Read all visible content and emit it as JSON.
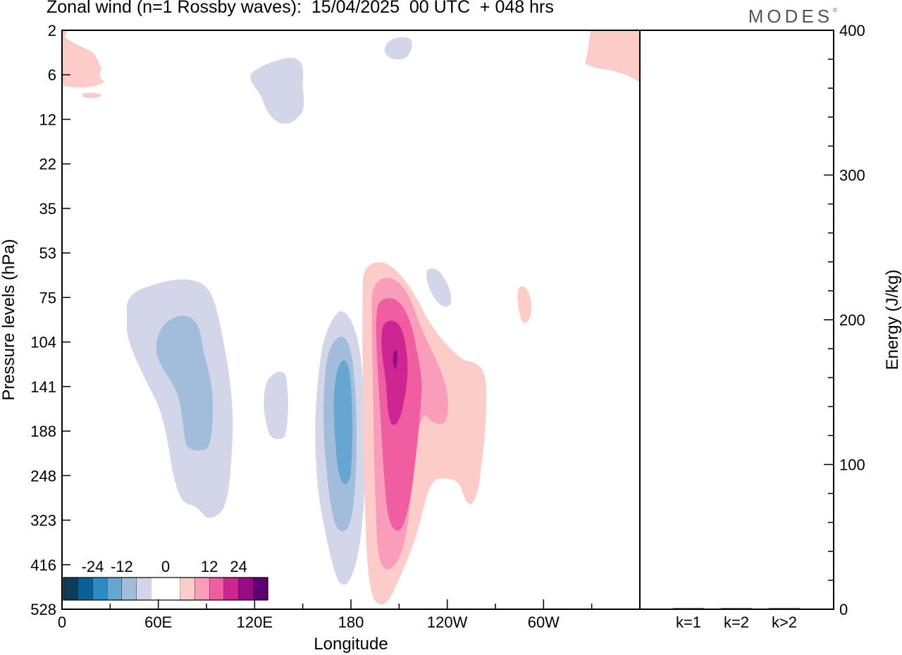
{
  "title": "Zonal wind (n=1 Rossby waves):  15/04/2025  00 UTC  + 048 hrs",
  "brand": "MODES",
  "brand_mark": "©",
  "chart_data": [
    {
      "type": "contour",
      "xlabel": "Longitude",
      "ylabel": "Pressure levels (hPa)",
      "x_ticks": [
        {
          "lon": 0,
          "label": "0"
        },
        {
          "lon": 60,
          "label": "60E"
        },
        {
          "lon": 120,
          "label": "120E"
        },
        {
          "lon": 180,
          "label": "180"
        },
        {
          "lon": 240,
          "label": "120W"
        },
        {
          "lon": 300,
          "label": "60W"
        }
      ],
      "xlim": [
        0,
        360
      ],
      "y_ticks": [
        "2",
        "6",
        "12",
        "22",
        "35",
        "53",
        "75",
        "104",
        "141",
        "188",
        "248",
        "323",
        "416",
        "528"
      ],
      "y_reversed": true,
      "colorbar": {
        "labels": [
          "-24",
          "-12",
          "0",
          "12",
          "24"
        ],
        "colors": [
          "#0f3d57",
          "#0a5f94",
          "#2b8cc4",
          "#66a6d0",
          "#a2bcdb",
          "#d3d6e9",
          "#ffffff",
          "#ffffff",
          "#fcccc8",
          "#f99dbb",
          "#ee5ea0",
          "#cd2592",
          "#990d84",
          "#5c0270"
        ]
      },
      "regions": [
        {
          "sign": "negative",
          "level": -4,
          "lon": [
            40,
            105
          ],
          "p": [
            75,
            323
          ],
          "color": "#d3d6e9"
        },
        {
          "sign": "negative",
          "level": -8,
          "lon": [
            58,
            92
          ],
          "p": [
            95,
            200
          ],
          "color": "#a2bcdb"
        },
        {
          "sign": "negative",
          "level": -4,
          "lon": [
            126,
            140
          ],
          "p": [
            135,
            215
          ],
          "color": "#d3d6e9"
        },
        {
          "sign": "negative",
          "level": -4,
          "lon": [
            160,
            188
          ],
          "p": [
            85,
            475
          ],
          "color": "#d3d6e9"
        },
        {
          "sign": "negative",
          "level": -8,
          "lon": [
            167,
            184
          ],
          "p": [
            105,
            330
          ],
          "color": "#a2bcdb"
        },
        {
          "sign": "negative",
          "level": -12,
          "lon": [
            171,
            181
          ],
          "p": [
            125,
            240
          ],
          "color": "#66a6d0"
        },
        {
          "sign": "negative",
          "level": -4,
          "lon": [
            116,
            150
          ],
          "p": [
            4,
            12
          ],
          "color": "#d3d6e9"
        },
        {
          "sign": "negative",
          "level": -4,
          "lon": [
            202,
            218
          ],
          "p": [
            2.6,
            4.3
          ],
          "color": "#d3d6e9"
        },
        {
          "sign": "negative",
          "level": -4,
          "lon": [
            228,
            245
          ],
          "p": [
            62,
            88
          ],
          "color": "#d3d6e9"
        },
        {
          "sign": "positive",
          "level": 4,
          "lon": [
            188,
            264
          ],
          "p": [
            55,
            528
          ],
          "color": "#fcccc8"
        },
        {
          "sign": "positive",
          "level": 8,
          "lon": [
            190,
            240
          ],
          "p": [
            66,
            430
          ],
          "color": "#f99dbb"
        },
        {
          "sign": "positive",
          "level": 12,
          "lon": [
            193,
            226
          ],
          "p": [
            80,
            400
          ],
          "color": "#ee5ea0"
        },
        {
          "sign": "positive",
          "level": 16,
          "lon": [
            196,
            212
          ],
          "p": [
            95,
            180
          ],
          "color": "#cd2592"
        },
        {
          "sign": "positive",
          "level": 20,
          "lon": [
            207,
            209
          ],
          "p": [
            116,
            126
          ],
          "color": "#990d84"
        },
        {
          "sign": "positive",
          "level": 4,
          "lon": [
            284,
            291
          ],
          "p": [
            72,
            104
          ],
          "color": "#fcccc8"
        },
        {
          "sign": "positive",
          "level": 4,
          "lon": [
            0,
            26
          ],
          "p": [
            2,
            8
          ],
          "color": "#fcccc8"
        },
        {
          "sign": "positive",
          "level": 4,
          "lon": [
            328,
            360
          ],
          "p": [
            2,
            6.5
          ],
          "color": "#fcccc8"
        }
      ]
    },
    {
      "type": "bar",
      "ylabel": "Energy (J/kg)",
      "categories": [
        "k=1",
        "k=2",
        "k>2"
      ],
      "values": [
        0.3,
        0.1,
        0.2
      ],
      "ylim": [
        0,
        400
      ],
      "y_ticks": [
        0,
        100,
        200,
        300,
        400
      ],
      "y_minor_step": 20
    }
  ]
}
